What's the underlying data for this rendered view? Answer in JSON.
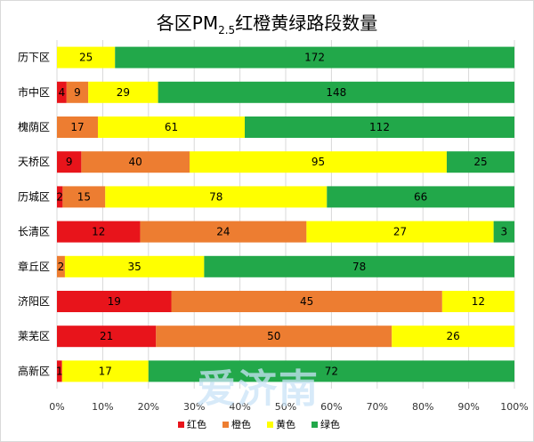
{
  "chart_data": {
    "type": "bar",
    "orientation": "horizontal",
    "stacked": "percent",
    "title": {
      "main": "各区PM",
      "subscript": "2.5",
      "rest": "红橙黄绿路段数量"
    },
    "categories": [
      "历下区",
      "市中区",
      "槐荫区",
      "天桥区",
      "历城区",
      "长清区",
      "章丘区",
      "济阳区",
      "莱芜区",
      "高新区"
    ],
    "series": [
      {
        "name": "红色",
        "color": "#e8141b",
        "values": [
          0,
          4,
          0,
          9,
          2,
          12,
          0,
          19,
          21,
          1
        ]
      },
      {
        "name": "橙色",
        "color": "#ed7d31",
        "values": [
          0,
          9,
          17,
          40,
          15,
          24,
          2,
          45,
          50,
          0
        ]
      },
      {
        "name": "黄色",
        "color": "#ffff00",
        "values": [
          25,
          29,
          61,
          95,
          78,
          27,
          35,
          12,
          26,
          17
        ]
      },
      {
        "name": "绿色",
        "color": "#22a84a",
        "values": [
          172,
          148,
          112,
          25,
          66,
          3,
          78,
          0,
          0,
          72
        ]
      }
    ],
    "xlim": [
      0,
      100
    ],
    "x_ticks": [
      "0%",
      "10%",
      "20%",
      "30%",
      "40%",
      "50%",
      "60%",
      "70%",
      "80%",
      "90%",
      "100%"
    ],
    "grid": true,
    "legend_position": "bottom"
  },
  "watermark": {
    "text": "爱济南"
  }
}
